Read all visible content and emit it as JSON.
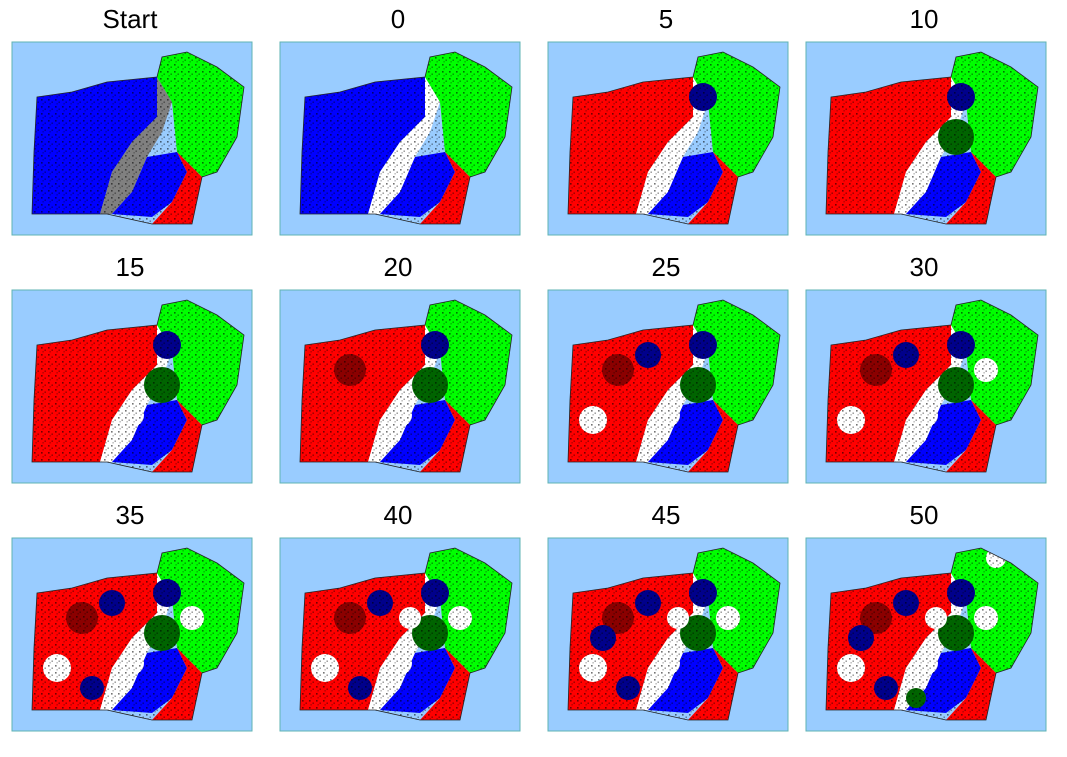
{
  "panels": [
    {
      "label": "Start"
    },
    {
      "label": "0"
    },
    {
      "label": "5"
    },
    {
      "label": "10"
    },
    {
      "label": "15"
    },
    {
      "label": "20"
    },
    {
      "label": "25"
    },
    {
      "label": "30"
    },
    {
      "label": "35"
    },
    {
      "label": "40"
    },
    {
      "label": "45"
    },
    {
      "label": "50"
    }
  ]
}
